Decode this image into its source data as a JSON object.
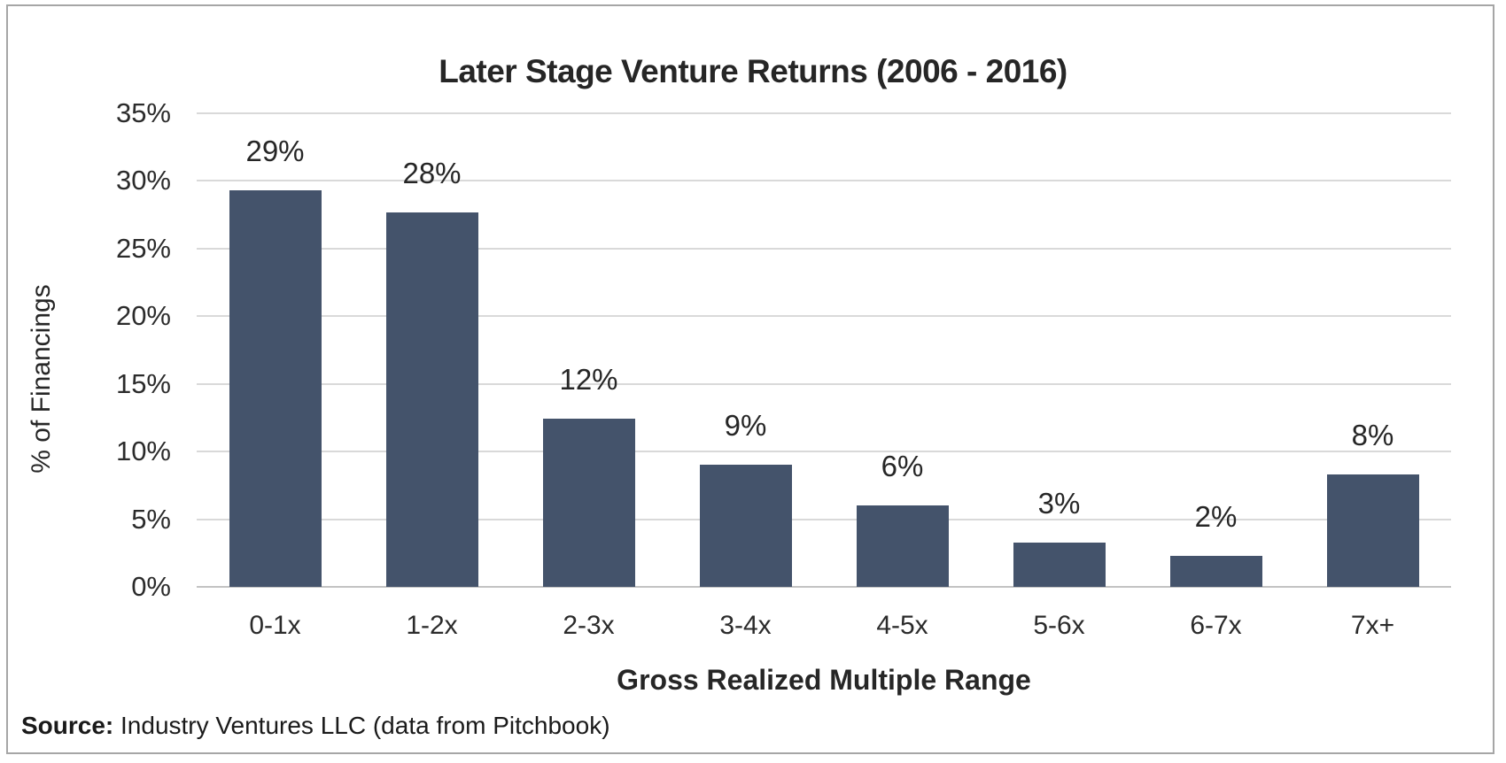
{
  "frame": {
    "border_color": "#a6a6a6",
    "background_color": "#ffffff"
  },
  "chart_data": {
    "type": "bar",
    "title": "Later Stage Venture Returns (2006 - 2016)",
    "xlabel": "Gross Realized Multiple Range",
    "ylabel": "% of Financings",
    "categories": [
      "0-1x",
      "1-2x",
      "2-3x",
      "3-4x",
      "4-5x",
      "5-6x",
      "6-7x",
      "7x+"
    ],
    "values": [
      29,
      28,
      12,
      9,
      6,
      3,
      2,
      8
    ],
    "bar_heights_pct": [
      29.3,
      27.7,
      12.4,
      9.0,
      6.0,
      3.3,
      2.3,
      8.3
    ],
    "data_labels": [
      "29%",
      "28%",
      "12%",
      "9%",
      "6%",
      "3%",
      "2%",
      "8%"
    ],
    "ylim": [
      0,
      35
    ],
    "ytick_step": 5,
    "ytick_labels": [
      "0%",
      "5%",
      "10%",
      "15%",
      "20%",
      "25%",
      "30%",
      "35%"
    ],
    "grid": true,
    "legend": false,
    "bar_color": "#44536B",
    "gridline_color": "#d9d9d9",
    "baseline_color": "#c3c3c3",
    "text_color": "#262626"
  },
  "footer": {
    "source_label": "Source:",
    "source_text": " Industry Ventures LLC (data from Pitchbook)"
  }
}
